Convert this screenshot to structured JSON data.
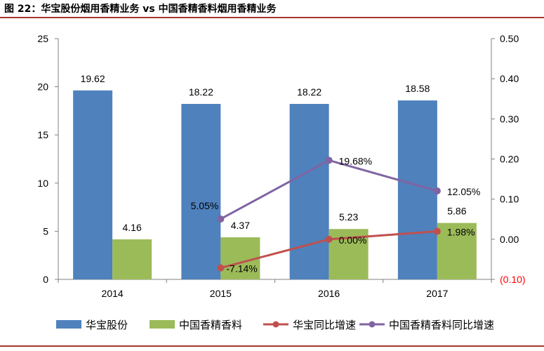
{
  "header": {
    "title": "图 22：华宝股份烟用香精业务 vs 中国香精香料烟用香精业务"
  },
  "colors": {
    "hb_bar": "#4f81bd",
    "cn_bar": "#9bbb59",
    "hb_line": "#c0504d",
    "cn_line": "#8064a2",
    "negative_tick": "#ff0000",
    "rule": "#a8352e"
  },
  "chart_data": {
    "type": "bar+line",
    "title": "图 22：华宝股份烟用香精业务 vs 中国香精香料烟用香精业务",
    "categories": [
      "2014",
      "2015",
      "2016",
      "2017"
    ],
    "left_axis": {
      "ylim": [
        0,
        25
      ],
      "ticks": [
        "0",
        "5",
        "10",
        "15",
        "20",
        "25"
      ]
    },
    "right_axis": {
      "ylim": [
        -0.1,
        0.5
      ],
      "ticks": [
        "(0.10)",
        "0.00",
        "0.10",
        "0.20",
        "0.30",
        "0.40",
        "0.50"
      ]
    },
    "bars": [
      {
        "name": "华宝股份",
        "values": [
          19.62,
          18.22,
          18.22,
          18.58
        ],
        "labels": [
          "19.62",
          "18.22",
          "18.22",
          "18.58"
        ]
      },
      {
        "name": "中国香精香料",
        "values": [
          4.16,
          4.37,
          5.23,
          5.86
        ],
        "labels": [
          "4.16",
          "4.37",
          "5.23",
          "5.86"
        ]
      }
    ],
    "lines": [
      {
        "name": "华宝同比增速",
        "values": [
          null,
          -0.0714,
          0.0,
          0.0198
        ],
        "labels": [
          null,
          "-7.14%",
          "0.00%",
          "1.98%"
        ]
      },
      {
        "name": "中国香精香料同比增速",
        "values": [
          null,
          0.0505,
          0.1968,
          0.1205
        ],
        "labels": [
          null,
          "5.05%",
          "19.68%",
          "12.05%"
        ]
      }
    ],
    "legend": [
      "华宝股份",
      "中国香精香料",
      "华宝同比增速",
      "中国香精香料同比增速"
    ],
    "legend_position": "bottom"
  }
}
